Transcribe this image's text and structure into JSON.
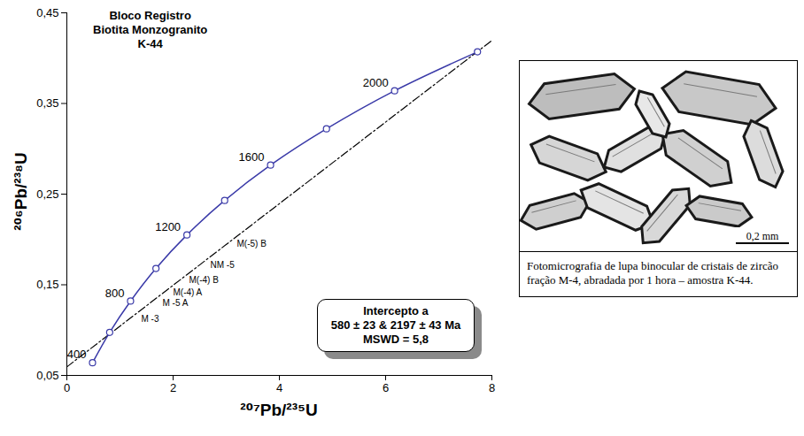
{
  "chart_data": {
    "type": "line",
    "title": "Bloco Registro",
    "subtitle": "Biotita Monzogranito",
    "sample": "K-44",
    "x_label": "²⁰⁷Pb/²³⁵U",
    "y_label": "²⁰⁶Pb/²³⁸U",
    "xlim": [
      0,
      8
    ],
    "xticks": [
      0,
      2,
      4,
      6,
      8
    ],
    "ylim": [
      0.05,
      0.45
    ],
    "yticks": [
      {
        "value": 0.05,
        "label": "0,05"
      },
      {
        "value": 0.15,
        "label": "0,15"
      },
      {
        "value": 0.25,
        "label": "0,25"
      },
      {
        "value": 0.35,
        "label": "0,35"
      },
      {
        "value": 0.45,
        "label": "0,45"
      }
    ],
    "concordia": {
      "color": "#3a3aa8",
      "marker": "circle",
      "line_style": "solid",
      "ages": [
        400,
        600,
        800,
        1000,
        1200,
        1400,
        1600,
        1800,
        2000,
        2200
      ],
      "x": [
        0.483,
        0.806,
        1.199,
        1.677,
        2.26,
        2.97,
        3.834,
        4.887,
        6.169,
        7.729
      ],
      "values": [
        0.064,
        0.0975,
        0.132,
        0.168,
        0.205,
        0.243,
        0.282,
        0.322,
        0.364,
        0.407
      ]
    },
    "labeled_ages": [
      400,
      800,
      1200,
      1600,
      2000
    ],
    "discordia": {
      "color": "#000000",
      "line_style": "dashdot",
      "x": [
        0,
        8
      ],
      "values": [
        0.0594,
        0.4195
      ]
    },
    "fractions": {
      "labels": [
        "M -3",
        "M -5 A",
        "M(-4) A",
        "M(-4) B",
        "NM -5",
        "M(-5) B"
      ],
      "x": [
        1.4,
        1.8,
        2.0,
        2.3,
        2.7,
        3.2
      ],
      "values": [
        0.112,
        0.13,
        0.141,
        0.155,
        0.172,
        0.195
      ]
    },
    "annotation": [
      "Intercepto a",
      "580 ± 23 & 2197 ± 43 Ma",
      "MSWD = 5,8"
    ],
    "photo": {
      "scale_bar": "0,2 mm",
      "caption": "Fotomicrografia de lupa binocular de cristais de zircão fração M-4, abradada por 1 hora – amostra K-44."
    }
  }
}
